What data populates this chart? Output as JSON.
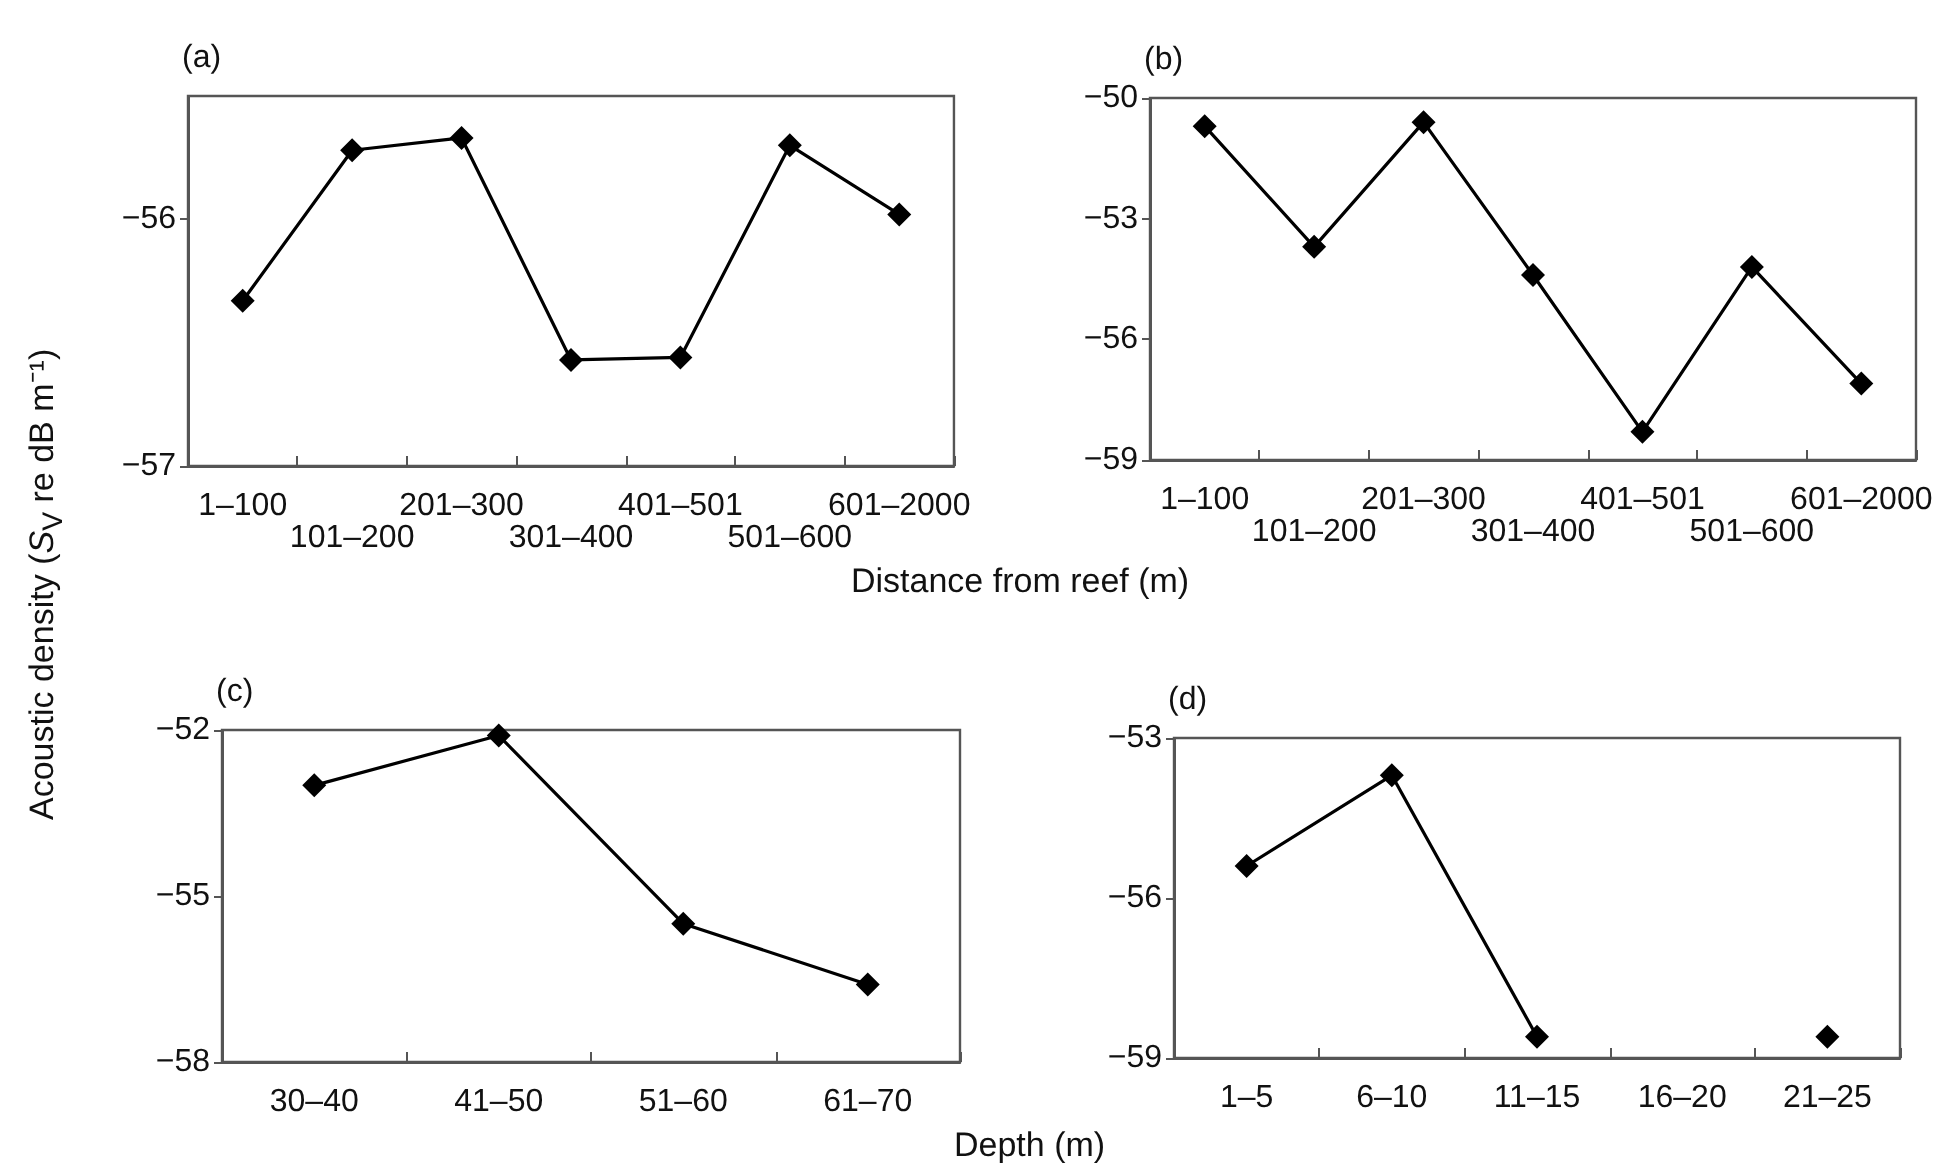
{
  "chart_data": [
    {
      "type": "line",
      "title": "(a)",
      "xlabel": "Distance from reef (m)",
      "ylabel": "Acoustic density (S$_{V}$ re dB m⁻¹)",
      "categories": [
        "1–100",
        "101–200",
        "201–300",
        "301–400",
        "401–501",
        "501–600",
        "601–2000"
      ],
      "ylim": [
        -57,
        -55.5
      ],
      "yticks": [
        -57,
        -56
      ],
      "marker": "diamond",
      "line_style": "solid",
      "series": [
        {
          "color": "#000000",
          "values": [
            -56.33,
            -55.72,
            -55.67,
            -56.57,
            -56.56,
            -55.7,
            -55.98
          ]
        }
      ]
    },
    {
      "type": "line",
      "title": "(b)",
      "categories": [
        "1–100",
        "101–200",
        "201–300",
        "301–400",
        "401–501",
        "501–600",
        "601–2000"
      ],
      "ylim": [
        -59,
        -50
      ],
      "yticks": [
        -59,
        -56,
        -53,
        -50
      ],
      "marker": "diamond",
      "line_style": "solid",
      "series": [
        {
          "color": "#000000",
          "values": [
            -50.7,
            -53.7,
            -50.6,
            -54.4,
            -58.3,
            -54.2,
            -57.1
          ]
        }
      ]
    },
    {
      "type": "line",
      "title": "(c)",
      "xlabel": "Depth (m)",
      "categories": [
        "30–40",
        "41–50",
        "51–60",
        "61–70"
      ],
      "ylim": [
        -58,
        -52
      ],
      "yticks": [
        -58,
        -55,
        -52
      ],
      "marker": "diamond",
      "line_style": "solid",
      "series": [
        {
          "color": "#000000",
          "values": [
            -53.0,
            -52.1,
            -55.5,
            -56.6
          ]
        }
      ]
    },
    {
      "type": "line",
      "title": "(d)",
      "categories": [
        "1–5",
        "6–10",
        "11–15",
        "16–20",
        "21–25"
      ],
      "ylim": [
        -59,
        -53
      ],
      "yticks": [
        -59,
        -56,
        -53
      ],
      "marker": "diamond",
      "line_style": "solid",
      "series": [
        {
          "color": "#000000",
          "values": [
            -55.4,
            -53.7,
            -58.6,
            null,
            -58.6
          ]
        }
      ]
    }
  ]
}
